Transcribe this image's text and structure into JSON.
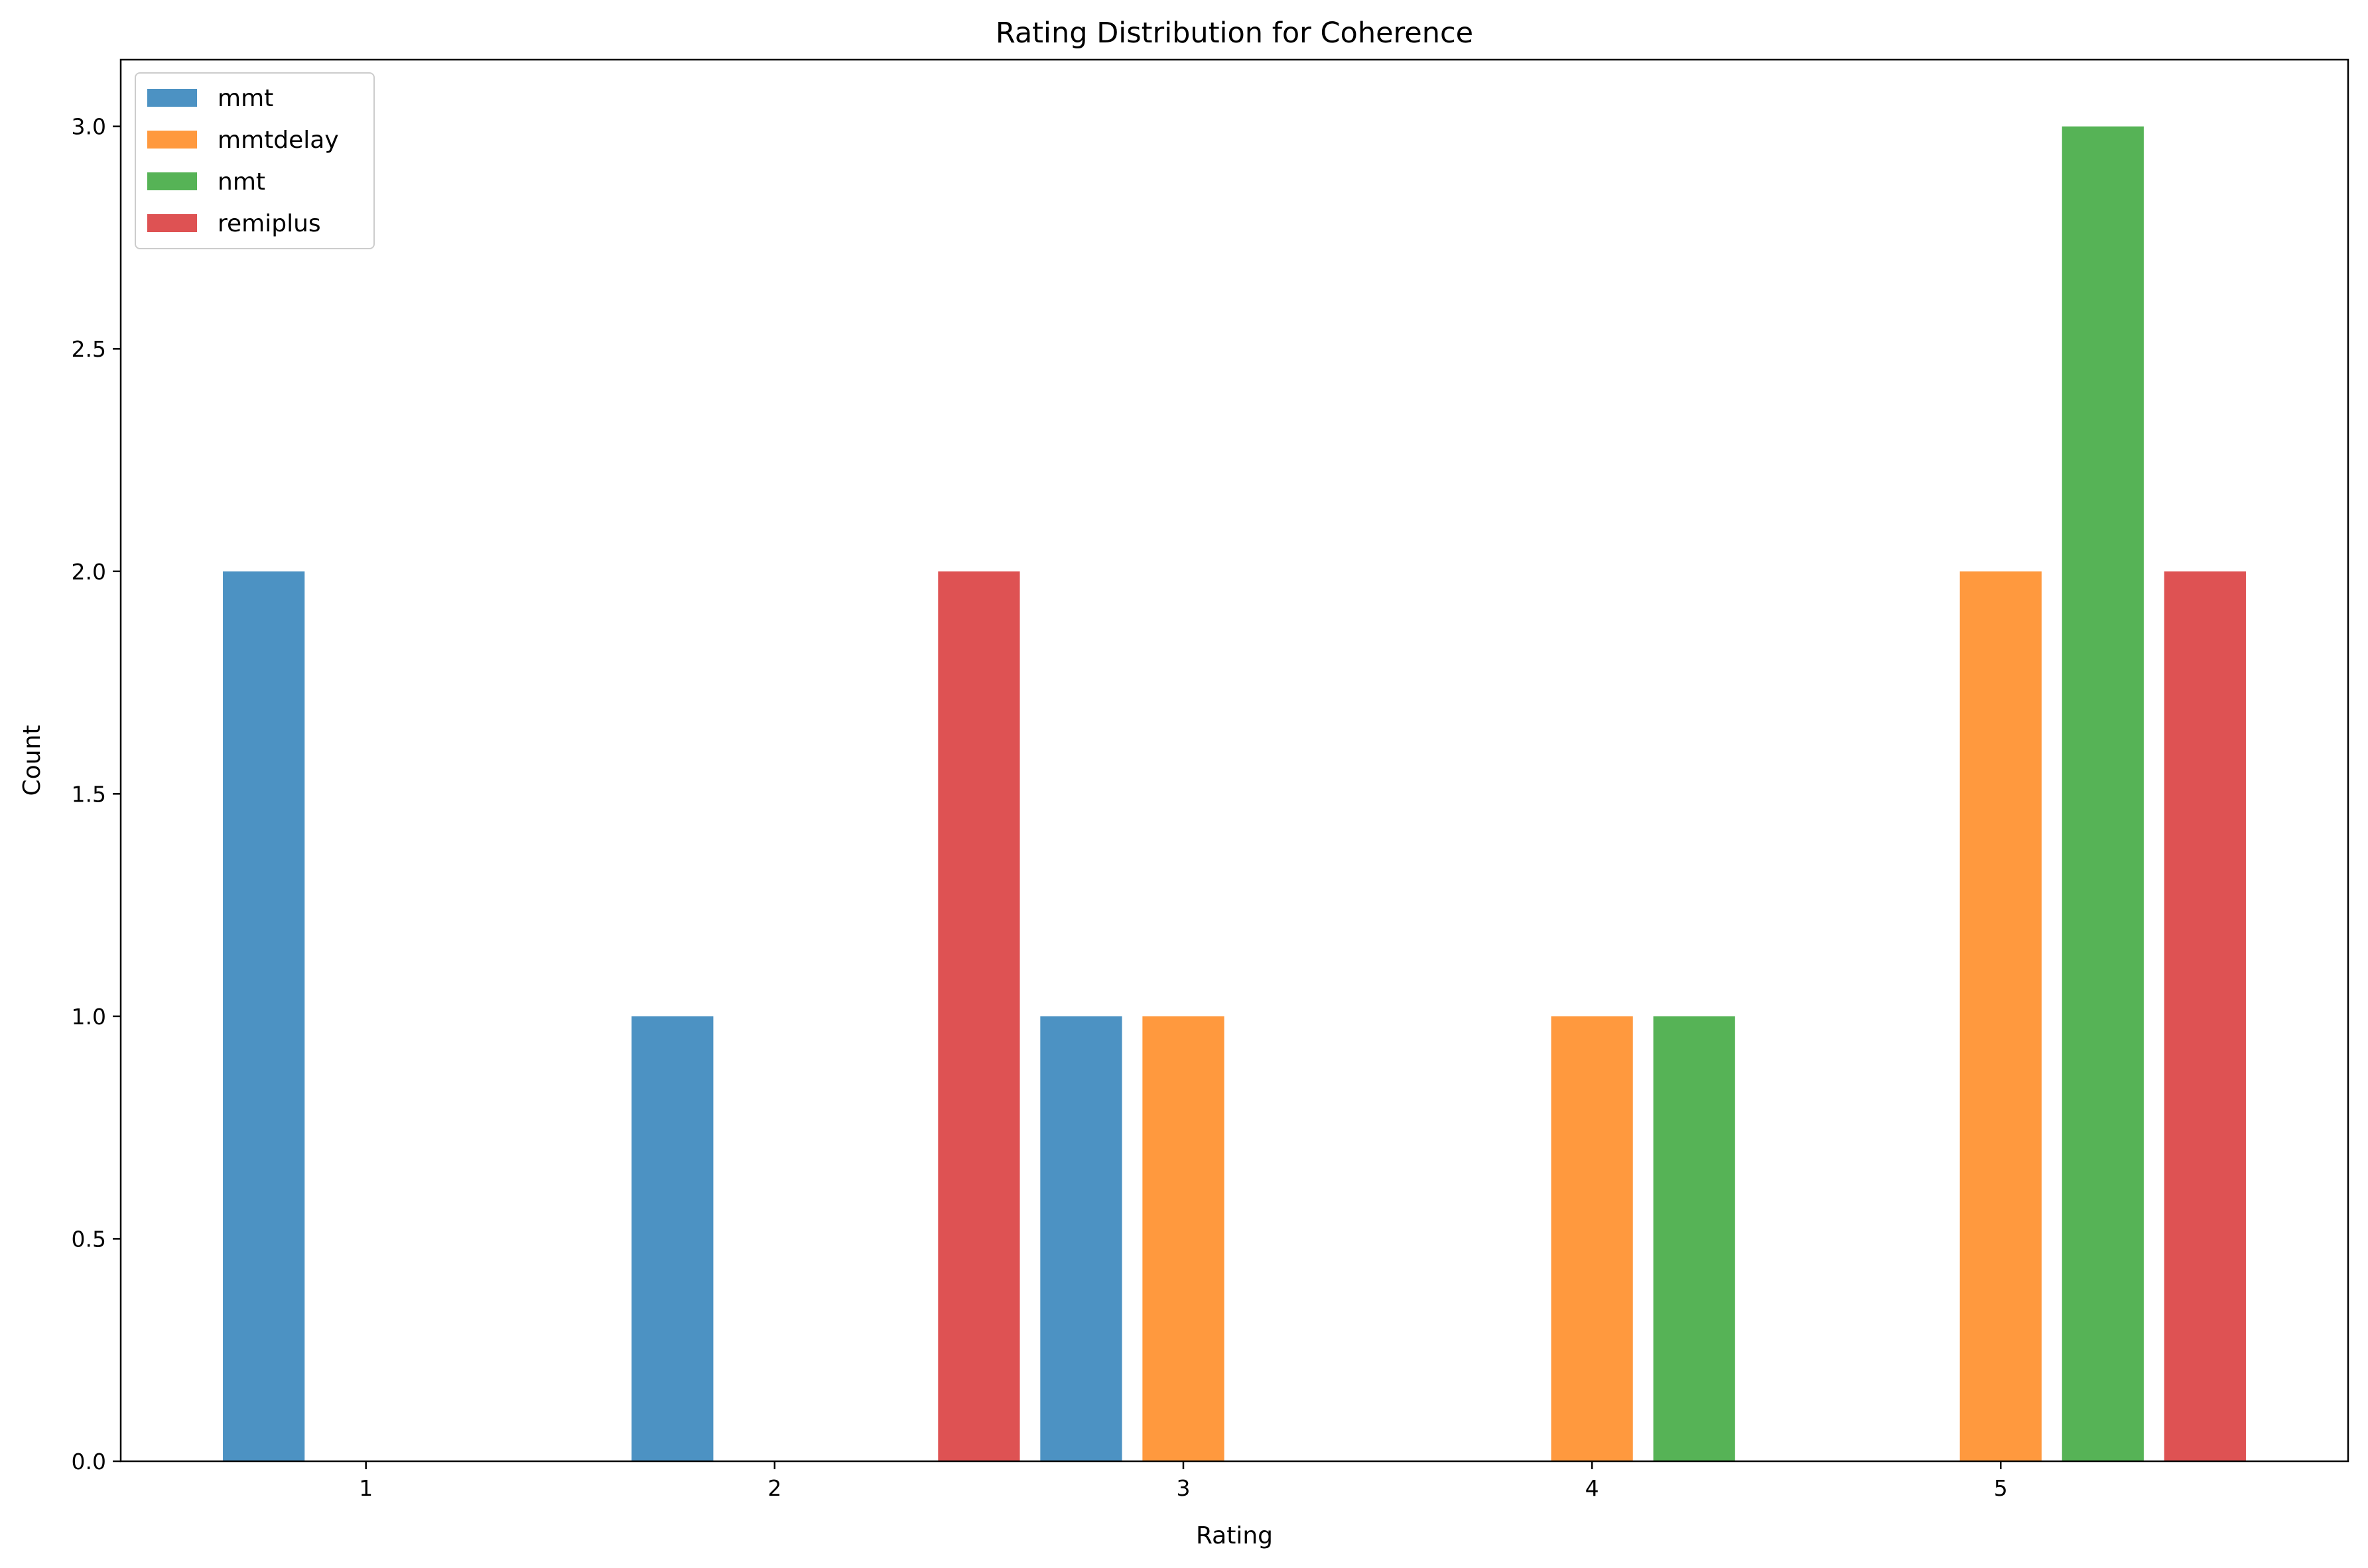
{
  "chart_data": {
    "type": "bar",
    "title": "Rating Distribution for Coherence",
    "xlabel": "Rating",
    "ylabel": "Count",
    "x_ticks": [
      1,
      2,
      3,
      4,
      5
    ],
    "x_tick_labels": [
      "1",
      "2",
      "3",
      "4",
      "5"
    ],
    "xlim": [
      0.4,
      5.85
    ],
    "ylim": [
      0,
      3.15
    ],
    "y_ticks": [
      0,
      0.5,
      1,
      1.5,
      2,
      2.5,
      3
    ],
    "y_tick_labels": [
      "0.0",
      "0.5",
      "1.0",
      "1.5",
      "2.0",
      "2.5",
      "3.0"
    ],
    "bar_width": 0.2,
    "grid": false,
    "legend_position": "top-left",
    "series": [
      {
        "name": "mmt",
        "color": "#4c92c3",
        "bars": [
          {
            "x": 0.75,
            "y": 2
          },
          {
            "x": 1.75,
            "y": 1
          },
          {
            "x": 2.75,
            "y": 1
          }
        ]
      },
      {
        "name": "mmtdelay",
        "color": "#ff993e",
        "bars": [
          {
            "x": 3.0,
            "y": 1
          },
          {
            "x": 4.0,
            "y": 1
          },
          {
            "x": 5.0,
            "y": 2
          }
        ]
      },
      {
        "name": "nmt",
        "color": "#56b356",
        "bars": [
          {
            "x": 4.25,
            "y": 1
          },
          {
            "x": 5.25,
            "y": 3
          }
        ]
      },
      {
        "name": "remiplus",
        "color": "#de5253",
        "bars": [
          {
            "x": 2.5,
            "y": 2
          },
          {
            "x": 5.5,
            "y": 2
          }
        ]
      }
    ]
  }
}
